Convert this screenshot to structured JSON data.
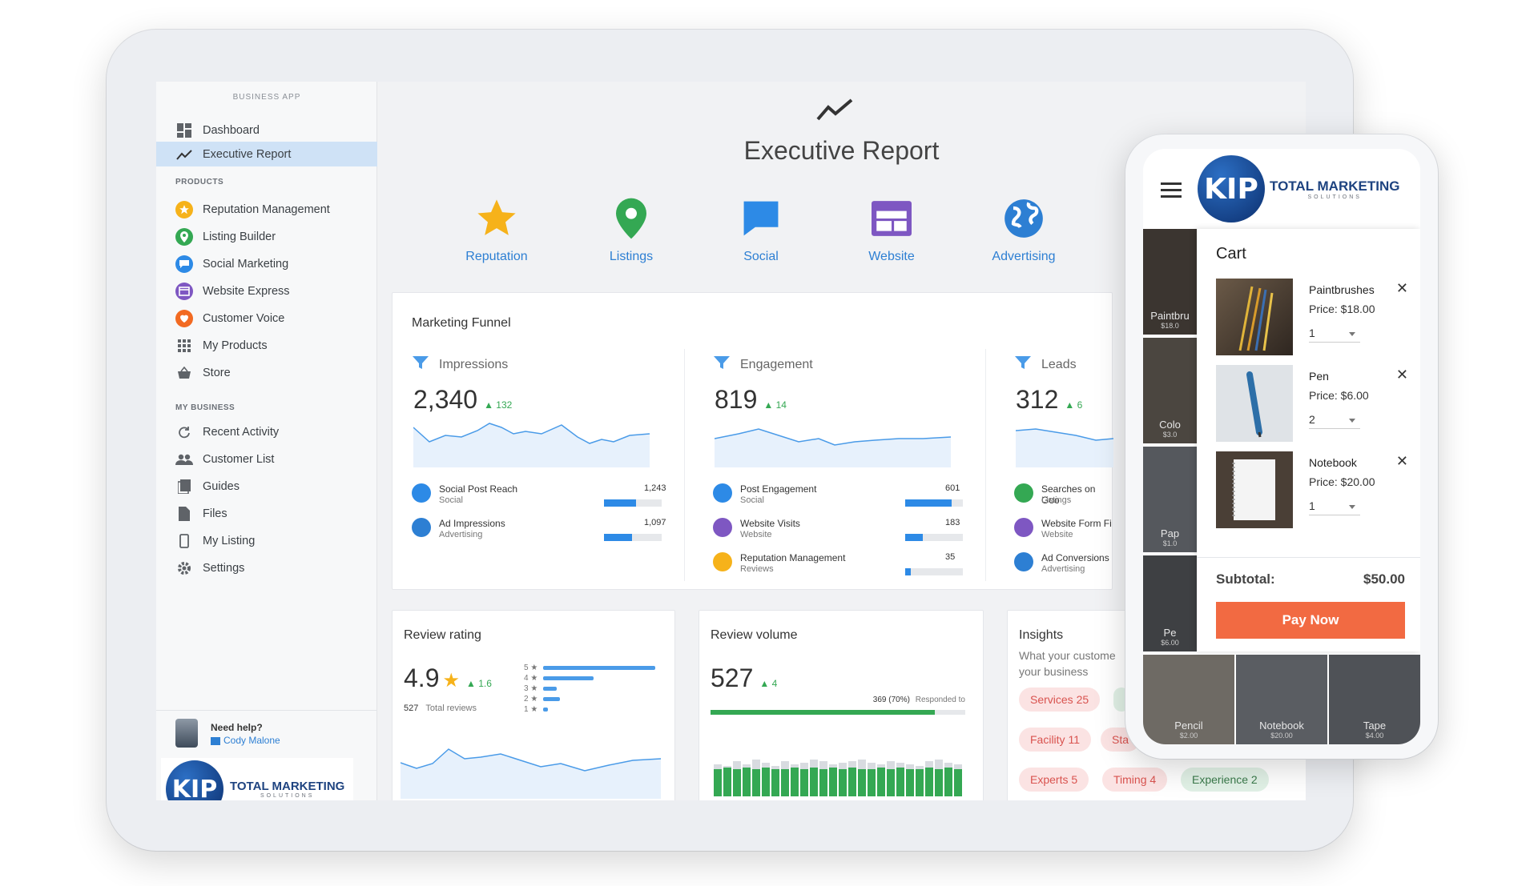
{
  "sidebar": {
    "app_label": "BUSINESS APP",
    "top_items": [
      {
        "label": "Dashboard",
        "icon": "dashboard-icon"
      },
      {
        "label": "Executive Report",
        "icon": "trend-icon",
        "active": true
      }
    ],
    "products_heading": "PRODUCTS",
    "products": [
      {
        "label": "Reputation Management",
        "icon": "star-icon",
        "color": "#f6b21a"
      },
      {
        "label": "Listing Builder",
        "icon": "pin-icon",
        "color": "#34a853"
      },
      {
        "label": "Social Marketing",
        "icon": "chat-icon",
        "color": "#2d8ae6"
      },
      {
        "label": "Website Express",
        "icon": "website-icon",
        "color": "#7e57c2"
      },
      {
        "label": "Customer Voice",
        "icon": "voice-icon",
        "color": "#f26a22"
      },
      {
        "label": "My Products",
        "icon": "grid-icon"
      },
      {
        "label": "Store",
        "icon": "store-icon"
      }
    ],
    "business_heading": "MY BUSINESS",
    "business": [
      {
        "label": "Recent Activity",
        "icon": "refresh-icon"
      },
      {
        "label": "Customer List",
        "icon": "people-icon"
      },
      {
        "label": "Guides",
        "icon": "guide-icon"
      },
      {
        "label": "Files",
        "icon": "file-icon"
      },
      {
        "label": "My Listing",
        "icon": "phone-icon"
      },
      {
        "label": "Settings",
        "icon": "gear-icon"
      }
    ],
    "help": {
      "title": "Need help?",
      "name": "Cody Malone"
    },
    "brand": {
      "mark": "KIP",
      "title": "TOTAL MARKETING",
      "subtitle": "SOLUTIONS"
    }
  },
  "main": {
    "title": "Executive Report",
    "products": [
      {
        "label": "Reputation",
        "icon": "star-icon",
        "color": "#f6b21a"
      },
      {
        "label": "Listings",
        "icon": "pin-icon",
        "color": "#34a853"
      },
      {
        "label": "Social",
        "icon": "chat-icon",
        "color": "#2d8ae6"
      },
      {
        "label": "Website",
        "icon": "website-icon",
        "color": "#7e57c2"
      },
      {
        "label": "Advertising",
        "icon": "globe-icon",
        "color": "#2d7fd3"
      }
    ],
    "funnel": {
      "title": "Marketing Funnel",
      "columns": [
        {
          "heading": "Impressions",
          "value": "2,340",
          "change": "132",
          "rows": [
            {
              "title": "Social Post Reach",
              "sub": "Social",
              "value": "1,243",
              "fraction": 0.55,
              "color": "#2d8ae6"
            },
            {
              "title": "Ad Impressions",
              "sub": "Advertising",
              "value": "1,097",
              "fraction": 0.48,
              "color": "#2d7fd3"
            }
          ]
        },
        {
          "heading": "Engagement",
          "value": "819",
          "change": "14",
          "rows": [
            {
              "title": "Post Engagement",
              "sub": "Social",
              "value": "601",
              "fraction": 0.8,
              "color": "#2d8ae6"
            },
            {
              "title": "Website Visits",
              "sub": "Website",
              "value": "183",
              "fraction": 0.3,
              "color": "#7e57c2"
            },
            {
              "title": "Reputation Management",
              "sub": "Reviews",
              "value": "35",
              "fraction": 0.1,
              "color": "#f6b21a"
            }
          ]
        },
        {
          "heading": "Leads",
          "value": "312",
          "change": "6",
          "rows": [
            {
              "title": "Searches on Goo",
              "sub": "Listings",
              "color": "#34a853"
            },
            {
              "title": "Website Form Fi",
              "sub": "Website",
              "color": "#7e57c2"
            },
            {
              "title": "Ad Conversions",
              "sub": "Advertising",
              "color": "#2d7fd3"
            }
          ]
        }
      ]
    },
    "review_rating": {
      "title": "Review rating",
      "value": "4.9",
      "change": "1.6",
      "total": "527",
      "total_label": "Total reviews",
      "stars": [
        "5",
        "4",
        "3",
        "2",
        "1"
      ],
      "star_fractions": [
        1.0,
        0.45,
        0.12,
        0.15,
        0.04
      ]
    },
    "review_volume": {
      "title": "Review volume",
      "value": "527",
      "change": "4",
      "responded": "369",
      "responded_pct": "(70%)",
      "responded_label": "Responded to",
      "responded_fraction": 0.88
    },
    "insights": {
      "title": "Insights",
      "subtitle_line1": "What your custome",
      "subtitle_line2": "your business",
      "chips": [
        {
          "label": "Services 25",
          "tone": "red"
        },
        {
          "label": "Facility 11",
          "tone": "red"
        },
        {
          "label": "Sta",
          "tone": "red"
        },
        {
          "label": "Experts 5",
          "tone": "red"
        },
        {
          "label": "Timing 4",
          "tone": "red"
        },
        {
          "label": "Experience 2",
          "tone": "green"
        }
      ]
    }
  },
  "phone": {
    "brand": {
      "mark": "KIP",
      "title": "TOTAL MARKETING",
      "subtitle": "SOLUTIONS"
    },
    "tiles": [
      {
        "label": "Paintbru",
        "price": "$18.0"
      },
      {
        "label": "Colo",
        "price": "$3.0"
      },
      {
        "label": "Pap",
        "price": "$1.0"
      },
      {
        "label": "Pe",
        "price": "$6.00"
      },
      {
        "label": "Pencil",
        "price": "$2.00"
      },
      {
        "label": "Notebook",
        "price": "$20.00"
      },
      {
        "label": "Tape",
        "price": "$4.00"
      }
    ],
    "cart": {
      "title": "Cart",
      "items": [
        {
          "name": "Paintbrushes",
          "price": "Price: $18.00",
          "qty": "1"
        },
        {
          "name": "Pen",
          "price": "Price: $6.00",
          "qty": "2"
        },
        {
          "name": "Notebook",
          "price": "Price: $20.00",
          "qty": "1"
        }
      ],
      "subtotal_label": "Subtotal:",
      "subtotal_value": "$50.00",
      "pay_label": "Pay Now"
    }
  }
}
